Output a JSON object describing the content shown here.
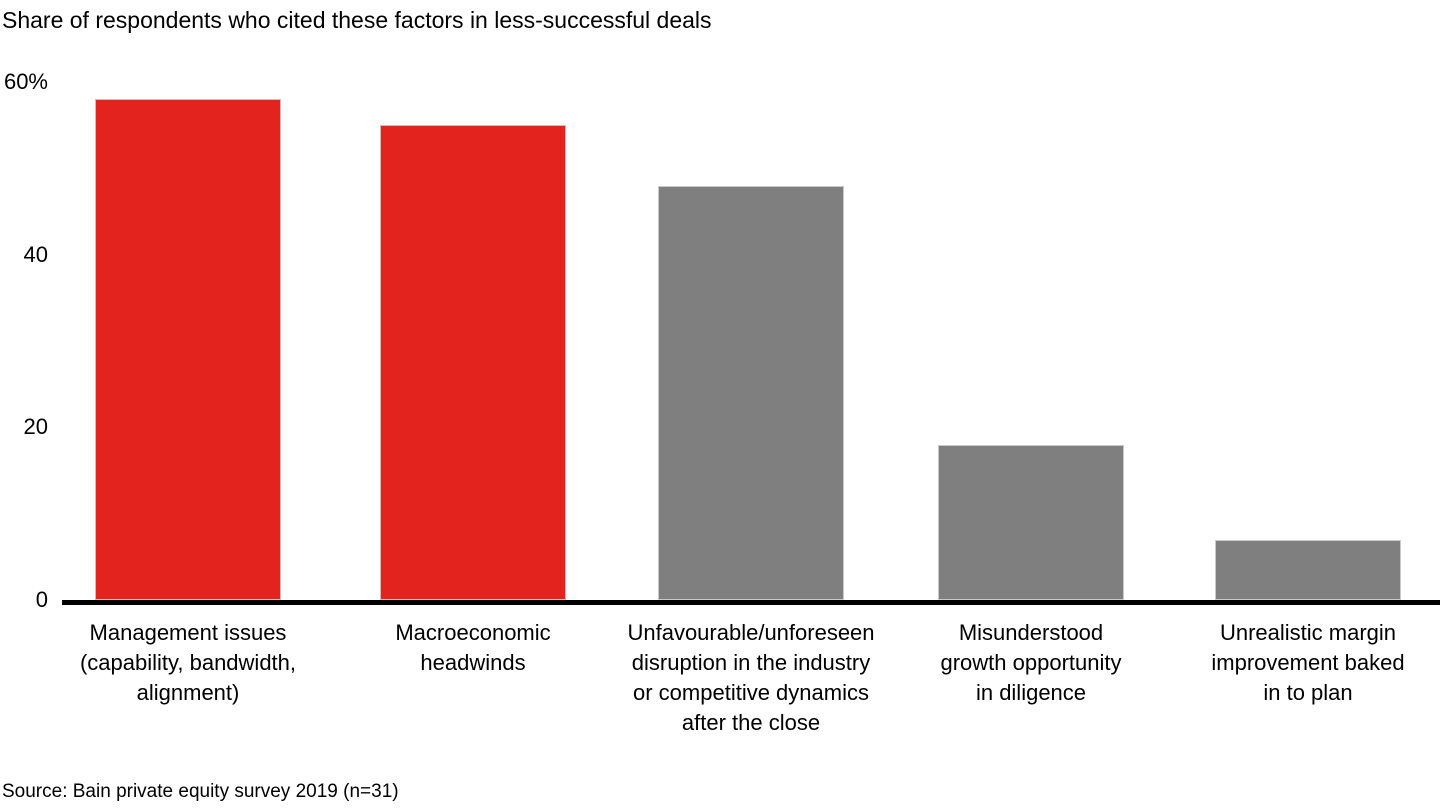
{
  "chart_data": {
    "type": "bar",
    "title": "Share of respondents who cited these factors in less-successful deals",
    "categories": [
      "Management issues (capability, bandwidth, alignment)",
      "Macroeconomic headwinds",
      "Unfavourable/unforeseen disruption in the industry or competitive dynamics after the close",
      "Misunderstood growth opportunity in diligence",
      "Unrealistic margin improvement baked in to plan"
    ],
    "category_lines": [
      [
        "Management issues",
        "(capability, bandwidth,",
        "alignment)"
      ],
      [
        "Macroeconomic",
        "headwinds"
      ],
      [
        "Unfavourable/unforeseen",
        "disruption in the industry",
        "or competitive dynamics",
        "after the close"
      ],
      [
        "Misunderstood",
        "growth opportunity",
        "in diligence"
      ],
      [
        "Unrealistic margin",
        "improvement baked",
        "in to plan"
      ]
    ],
    "values": [
      58,
      55,
      48,
      18,
      7
    ],
    "unit": "%",
    "bar_colors": [
      "#e2231e",
      "#e2231e",
      "#7f7f7f",
      "#7f7f7f",
      "#7f7f7f"
    ],
    "yticks": [
      {
        "value": 0,
        "label": "0"
      },
      {
        "value": 20,
        "label": "20"
      },
      {
        "value": 40,
        "label": "40"
      },
      {
        "value": 60,
        "label": "60%"
      }
    ],
    "ylim": [
      0,
      60
    ],
    "grid": false,
    "legend": false,
    "xlabel": "",
    "ylabel": "",
    "source": "Source: Bain private equity survey 2019 (n=31)"
  }
}
